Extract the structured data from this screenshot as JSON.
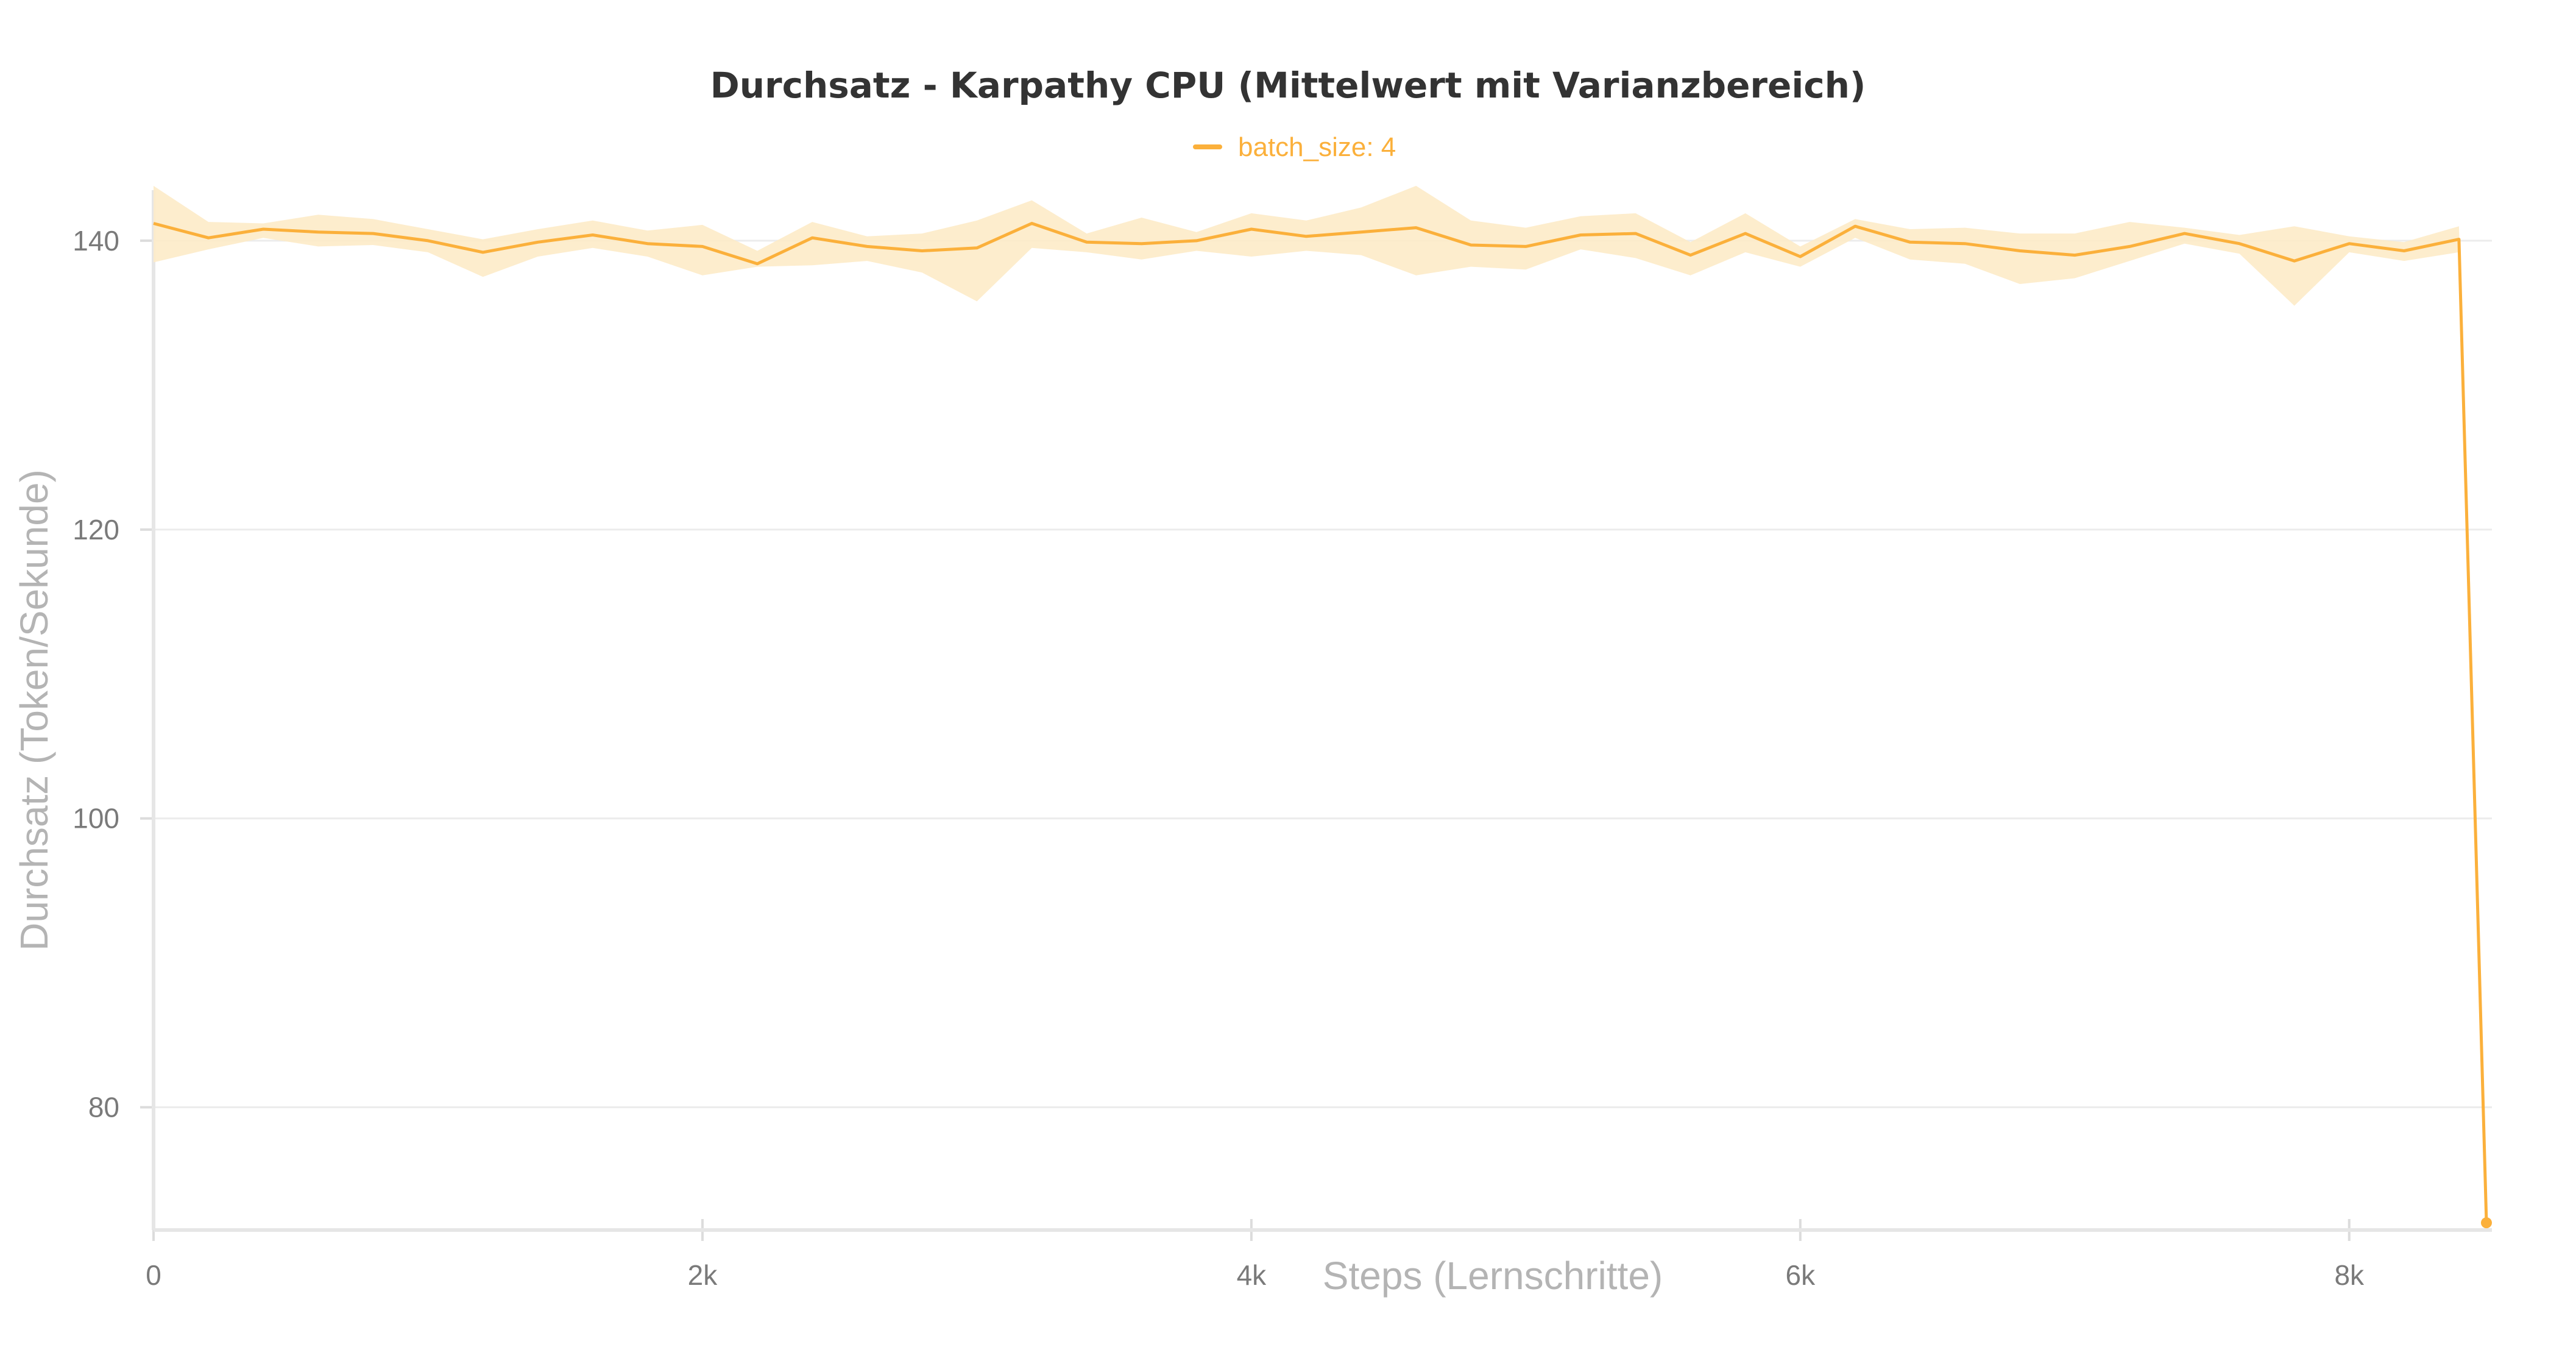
{
  "chart_data": {
    "type": "line",
    "title": "Durchsatz - Karpathy CPU (Mittelwert mit Varianzbereich)",
    "xlabel": "Steps (Lernschritte)",
    "ylabel": "Durchsatz (Token/Sekunde)",
    "xlim": [
      0,
      8520
    ],
    "ylim": [
      71.5,
      143.5
    ],
    "x_ticks": [
      {
        "value": 0,
        "label": "0"
      },
      {
        "value": 2000,
        "label": "2k"
      },
      {
        "value": 4000,
        "label": "4k"
      },
      {
        "value": 6000,
        "label": "6k"
      },
      {
        "value": 8000,
        "label": "8k"
      }
    ],
    "y_ticks": [
      {
        "value": 80,
        "label": "80"
      },
      {
        "value": 100,
        "label": "100"
      },
      {
        "value": 120,
        "label": "120"
      },
      {
        "value": 140,
        "label": "140"
      }
    ],
    "grid": true,
    "legend": "top-center",
    "series": [
      {
        "name": "batch_size: 4",
        "color": "#fbb03b",
        "band_color": "#fdebc8",
        "x": [
          0,
          200,
          400,
          600,
          800,
          1000,
          1200,
          1400,
          1600,
          1800,
          2000,
          2200,
          2400,
          2600,
          2800,
          3000,
          3200,
          3400,
          3600,
          3800,
          4000,
          4200,
          4400,
          4600,
          4800,
          5000,
          5200,
          5400,
          5600,
          5800,
          6000,
          6200,
          6400,
          6600,
          6800,
          7000,
          7200,
          7400,
          7600,
          7800,
          8000,
          8200,
          8400,
          8500
        ],
        "mean": [
          141.2,
          140.2,
          140.8,
          140.6,
          140.5,
          140.0,
          139.2,
          139.9,
          140.4,
          139.8,
          139.6,
          138.4,
          140.2,
          139.6,
          139.3,
          139.5,
          141.2,
          139.9,
          139.8,
          140.0,
          140.8,
          140.3,
          140.6,
          140.9,
          139.7,
          139.6,
          140.4,
          140.5,
          139.0,
          140.5,
          138.9,
          141.0,
          139.9,
          139.8,
          139.3,
          139.0,
          139.6,
          140.5,
          139.8,
          138.6,
          139.8,
          139.3,
          140.1,
          72.0
        ],
        "upper": [
          143.8,
          141.3,
          141.2,
          141.8,
          141.5,
          140.8,
          140.1,
          140.8,
          141.4,
          140.7,
          141.1,
          139.3,
          141.3,
          140.3,
          140.5,
          141.4,
          142.8,
          140.5,
          141.6,
          140.6,
          141.9,
          141.4,
          142.3,
          143.8,
          141.4,
          140.9,
          141.7,
          141.9,
          139.9,
          141.9,
          139.6,
          141.5,
          140.8,
          140.9,
          140.5,
          140.5,
          141.3,
          140.9,
          140.4,
          141.0,
          140.3,
          139.9,
          141.0,
          72.0
        ],
        "lower": [
          138.5,
          139.4,
          140.2,
          139.6,
          139.7,
          139.2,
          137.5,
          138.9,
          139.5,
          138.9,
          137.6,
          138.2,
          138.3,
          138.6,
          137.8,
          135.8,
          139.5,
          139.2,
          138.7,
          139.3,
          138.9,
          139.3,
          139.0,
          137.6,
          138.2,
          138.0,
          139.4,
          138.8,
          137.6,
          139.2,
          138.2,
          140.2,
          138.7,
          138.4,
          137.0,
          137.4,
          138.6,
          139.8,
          139.1,
          135.5,
          139.2,
          138.6,
          139.2,
          72.0
        ]
      }
    ]
  }
}
